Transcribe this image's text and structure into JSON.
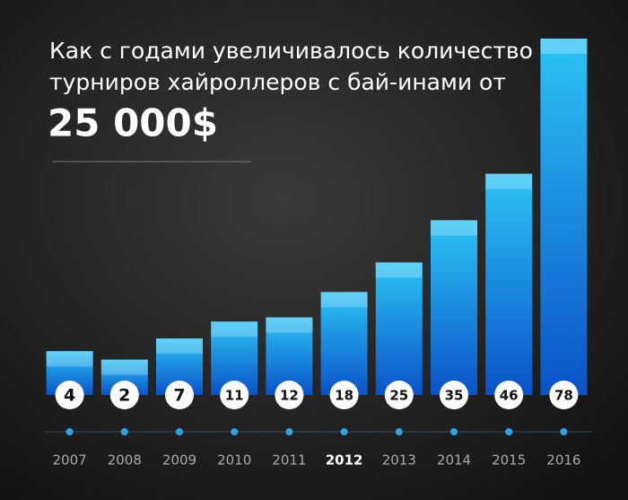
{
  "chart_data": {
    "type": "bar",
    "title_lines": [
      "Как с годами увеличивалось количество",
      "турниров хайроллеров с бай-инами от",
      "25 000$"
    ],
    "categories": [
      "2007",
      "2008",
      "2009",
      "2010",
      "2011",
      "2012",
      "2013",
      "2014",
      "2015",
      "2016"
    ],
    "values": [
      4,
      2,
      7,
      11,
      12,
      18,
      25,
      35,
      46,
      78
    ],
    "color": "#1aa3ec"
  }
}
